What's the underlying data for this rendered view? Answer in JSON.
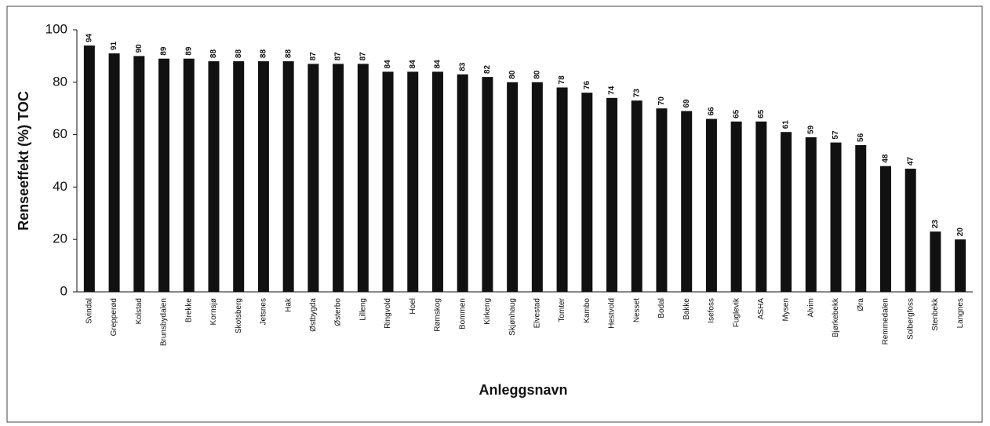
{
  "chart_data": {
    "type": "bar",
    "xlabel": "Anleggsnavn",
    "ylabel": "Renseeffekt (%) TOC",
    "categories": [
      "Svindal",
      "Grepperød",
      "Kolstad",
      "Brunsbydalen",
      "Brekke",
      "Kornsjø",
      "Skotsberg",
      "Jetsnes",
      "Hak",
      "Østbygda",
      "Østerbo",
      "Lilleng",
      "Ringvold",
      "Hoel",
      "Rømskog",
      "Bommen",
      "Kirkeng",
      "Skjønhaug",
      "Elvestad",
      "Tomter",
      "Kambo",
      "Hestvold",
      "Nesset",
      "Bodal",
      "Bakke",
      "Isefoss",
      "Fuglevik",
      "ASHA",
      "Mysen",
      "Alvim",
      "Bjørkebekk",
      "Øra",
      "Remmedalen",
      "Solbergfoss",
      "Stenbekk",
      "Langnes"
    ],
    "values": [
      94,
      91,
      90,
      89,
      89,
      88,
      88,
      88,
      88,
      87,
      87,
      87,
      84,
      84,
      84,
      83,
      82,
      80,
      80,
      78,
      76,
      74,
      73,
      70,
      69,
      66,
      65,
      65,
      61,
      59,
      57,
      56,
      48,
      47,
      23,
      20
    ],
    "color": "#111111",
    "ylim": [
      0,
      100
    ],
    "yticks": [
      0,
      20,
      40,
      60,
      80,
      100
    ],
    "grid": false
  }
}
